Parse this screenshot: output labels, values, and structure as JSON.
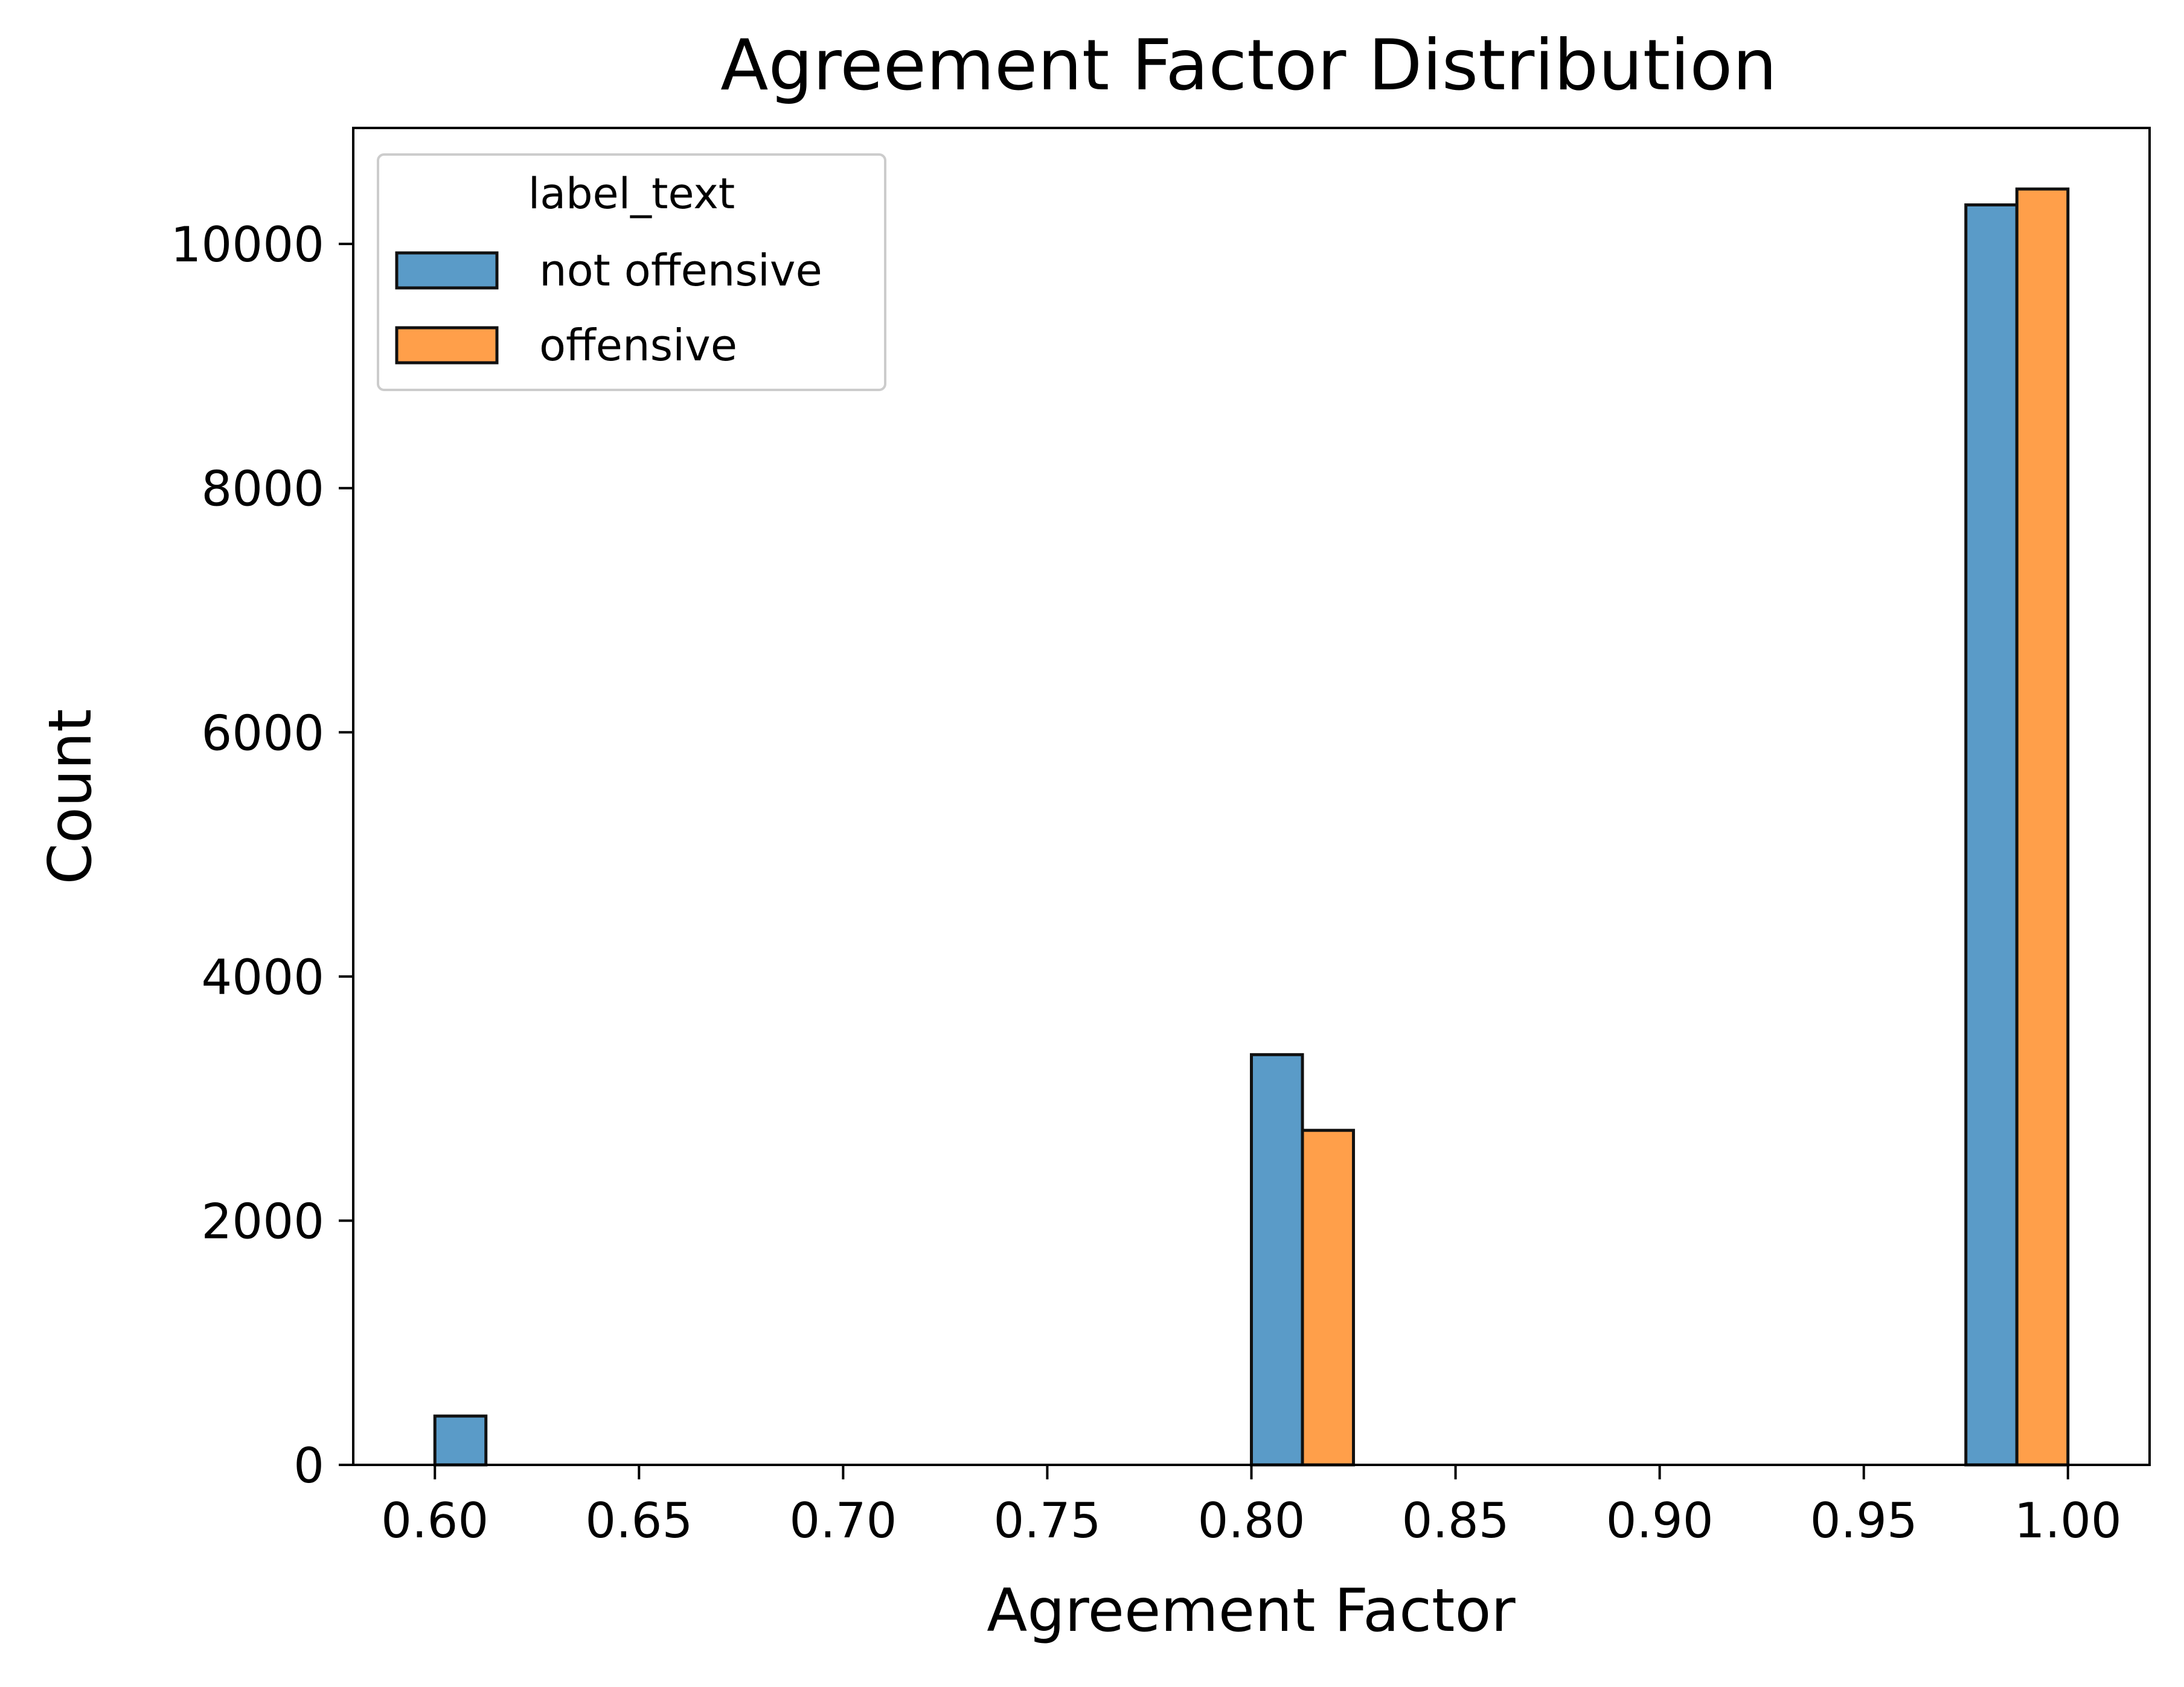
{
  "chart_data": {
    "type": "bar",
    "title": "Agreement Factor Distribution",
    "xlabel": "Agreement Factor",
    "ylabel": "Count",
    "xlim": [
      0.58,
      1.02
    ],
    "ylim": [
      0,
      10950
    ],
    "xticks": [
      0.6,
      0.65,
      0.7,
      0.75,
      0.8,
      0.85,
      0.9,
      0.95,
      1.0
    ],
    "xtick_labels": [
      "0.60",
      "0.65",
      "0.70",
      "0.75",
      "0.80",
      "0.85",
      "0.90",
      "0.95",
      "1.00"
    ],
    "yticks": [
      0,
      2000,
      4000,
      6000,
      8000,
      10000
    ],
    "ytick_labels": [
      "0",
      "2000",
      "4000",
      "6000",
      "8000",
      "10000"
    ],
    "bin_width": 0.0125,
    "grid": false,
    "legend": {
      "title": "label_text",
      "placement": "upper-left"
    },
    "series": [
      {
        "name": "not offensive",
        "color": "#5a9bc8",
        "bins": [
          {
            "x": 0.6,
            "value": 400
          },
          {
            "x": 0.8,
            "value": 3360
          },
          {
            "x": 0.975,
            "value": 10320
          }
        ]
      },
      {
        "name": "offensive",
        "color": "#ff9f4a",
        "bins": [
          {
            "x": 0.6,
            "value": 0
          },
          {
            "x": 0.8125,
            "value": 2740
          },
          {
            "x": 0.9875,
            "value": 10450
          }
        ]
      }
    ]
  }
}
